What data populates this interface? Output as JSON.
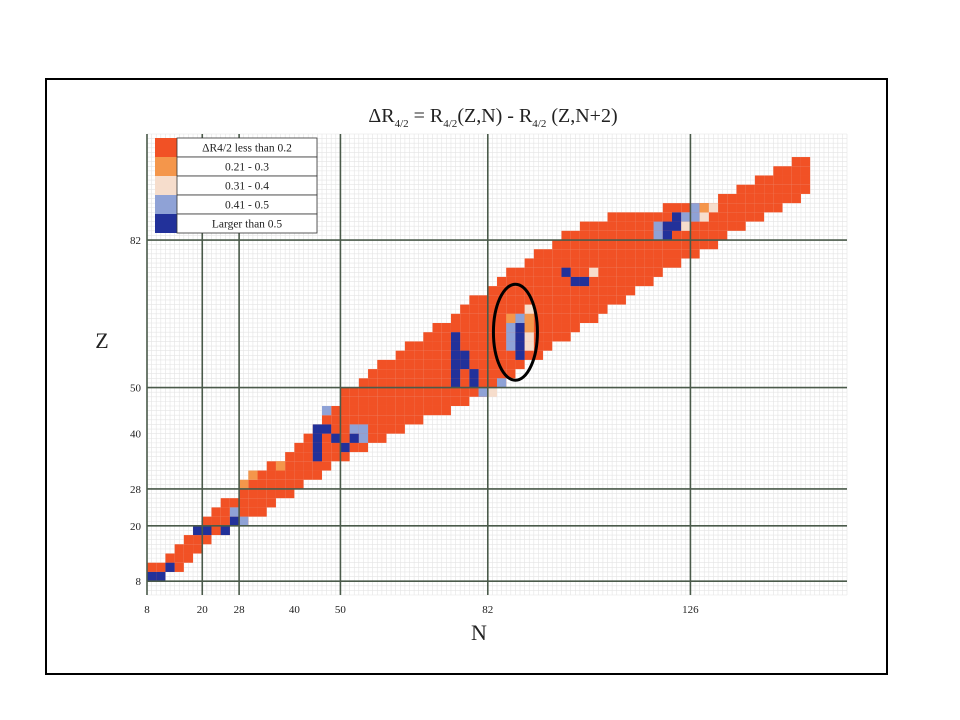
{
  "chart_data": {
    "type": "heatmap",
    "title": "ΔR4/2 = R4/2(Z,N) - R4/2 (Z,N+2)",
    "xlabel": "N",
    "ylabel": "Z",
    "x_ticks": [
      8,
      20,
      28,
      40,
      50,
      82,
      126
    ],
    "y_ticks": [
      8,
      20,
      28,
      40,
      50,
      82
    ],
    "xlim": [
      8,
      160
    ],
    "ylim": [
      5,
      105
    ],
    "magic_numbers_N": [
      8,
      20,
      28,
      50,
      82,
      126
    ],
    "magic_numbers_Z": [
      8,
      20,
      28,
      50,
      82
    ],
    "grid": true,
    "legend_position": "top-left",
    "legend": [
      {
        "label": "ΔR4/2 less than 0.2",
        "color": "#f15125"
      },
      {
        "label": "0.21 - 0.3",
        "color": "#f4964b"
      },
      {
        "label": "0.31 - 0.4",
        "color": "#f6ddcc"
      },
      {
        "label": "0.41 - 0.5",
        "color": "#8fa2d6"
      },
      {
        "label": "Larger than 0.5",
        "color": "#22319a"
      }
    ],
    "annotation": "ellipse around the N≈86–90, Z≈56–68 region",
    "band": {
      "description": "colored cells filling the nuclide band roughly between these Z bounds for each N",
      "N": [
        8,
        12,
        16,
        20,
        24,
        28,
        34,
        40,
        46,
        50,
        56,
        62,
        68,
        74,
        78,
        82,
        86,
        90,
        96,
        102,
        108,
        114,
        120,
        126,
        132,
        138,
        144,
        150
      ],
      "Z_min": [
        7,
        9,
        12,
        16,
        18,
        20,
        24,
        28,
        32,
        34,
        37,
        40,
        43,
        45,
        47,
        49,
        52,
        55,
        59,
        63,
        67,
        71,
        75,
        78,
        82,
        85,
        88,
        92
      ],
      "Z_max": [
        9,
        12,
        15,
        19,
        23,
        26,
        31,
        36,
        42,
        47,
        52,
        56,
        60,
        64,
        67,
        70,
        73,
        76,
        80,
        83,
        85,
        86,
        87,
        88,
        89,
        92,
        96,
        98
      ]
    },
    "highlight_cells": [
      {
        "N": 8,
        "Z": 8,
        "category": 4
      },
      {
        "N": 10,
        "Z": 8,
        "category": 4
      },
      {
        "N": 12,
        "Z": 10,
        "category": 4
      },
      {
        "N": 18,
        "Z": 18,
        "category": 4
      },
      {
        "N": 20,
        "Z": 18,
        "category": 4
      },
      {
        "N": 24,
        "Z": 18,
        "category": 4
      },
      {
        "N": 26,
        "Z": 20,
        "category": 4
      },
      {
        "N": 26,
        "Z": 22,
        "category": 3
      },
      {
        "N": 28,
        "Z": 20,
        "category": 3
      },
      {
        "N": 28,
        "Z": 28,
        "category": 1
      },
      {
        "N": 30,
        "Z": 30,
        "category": 1
      },
      {
        "N": 36,
        "Z": 32,
        "category": 1
      },
      {
        "N": 44,
        "Z": 34,
        "category": 4
      },
      {
        "N": 44,
        "Z": 36,
        "category": 4
      },
      {
        "N": 44,
        "Z": 38,
        "category": 4
      },
      {
        "N": 44,
        "Z": 40,
        "category": 4
      },
      {
        "N": 46,
        "Z": 40,
        "category": 4
      },
      {
        "N": 46,
        "Z": 44,
        "category": 3
      },
      {
        "N": 48,
        "Z": 38,
        "category": 4
      },
      {
        "N": 50,
        "Z": 36,
        "category": 4
      },
      {
        "N": 52,
        "Z": 38,
        "category": 4
      },
      {
        "N": 52,
        "Z": 40,
        "category": 3
      },
      {
        "N": 54,
        "Z": 38,
        "category": 3
      },
      {
        "N": 54,
        "Z": 40,
        "category": 3
      },
      {
        "N": 74,
        "Z": 50,
        "category": 4
      },
      {
        "N": 74,
        "Z": 52,
        "category": 4
      },
      {
        "N": 74,
        "Z": 54,
        "category": 4
      },
      {
        "N": 74,
        "Z": 56,
        "category": 4
      },
      {
        "N": 74,
        "Z": 58,
        "category": 4
      },
      {
        "N": 74,
        "Z": 60,
        "category": 4
      },
      {
        "N": 76,
        "Z": 54,
        "category": 4
      },
      {
        "N": 76,
        "Z": 56,
        "category": 4
      },
      {
        "N": 78,
        "Z": 50,
        "category": 4
      },
      {
        "N": 78,
        "Z": 52,
        "category": 4
      },
      {
        "N": 80,
        "Z": 48,
        "category": 3
      },
      {
        "N": 82,
        "Z": 48,
        "category": 2
      },
      {
        "N": 84,
        "Z": 50,
        "category": 3
      },
      {
        "N": 86,
        "Z": 58,
        "category": 3
      },
      {
        "N": 86,
        "Z": 60,
        "category": 3
      },
      {
        "N": 86,
        "Z": 62,
        "category": 3
      },
      {
        "N": 86,
        "Z": 64,
        "category": 1
      },
      {
        "N": 88,
        "Z": 56,
        "category": 4
      },
      {
        "N": 88,
        "Z": 58,
        "category": 4
      },
      {
        "N": 88,
        "Z": 60,
        "category": 4
      },
      {
        "N": 88,
        "Z": 62,
        "category": 4
      },
      {
        "N": 88,
        "Z": 64,
        "category": 3
      },
      {
        "N": 90,
        "Z": 58,
        "category": 2
      },
      {
        "N": 90,
        "Z": 60,
        "category": 2
      },
      {
        "N": 90,
        "Z": 62,
        "category": 1
      },
      {
        "N": 90,
        "Z": 64,
        "category": 1
      },
      {
        "N": 90,
        "Z": 66,
        "category": 2
      },
      {
        "N": 98,
        "Z": 74,
        "category": 4
      },
      {
        "N": 100,
        "Z": 72,
        "category": 4
      },
      {
        "N": 102,
        "Z": 72,
        "category": 4
      },
      {
        "N": 104,
        "Z": 74,
        "category": 2
      },
      {
        "N": 118,
        "Z": 82,
        "category": 3
      },
      {
        "N": 118,
        "Z": 84,
        "category": 3
      },
      {
        "N": 120,
        "Z": 82,
        "category": 4
      },
      {
        "N": 120,
        "Z": 84,
        "category": 4
      },
      {
        "N": 122,
        "Z": 84,
        "category": 4
      },
      {
        "N": 122,
        "Z": 86,
        "category": 4
      },
      {
        "N": 124,
        "Z": 84,
        "category": 2
      },
      {
        "N": 124,
        "Z": 86,
        "category": 3
      },
      {
        "N": 126,
        "Z": 86,
        "category": 3
      },
      {
        "N": 126,
        "Z": 88,
        "category": 3
      },
      {
        "N": 128,
        "Z": 86,
        "category": 2
      },
      {
        "N": 128,
        "Z": 88,
        "category": 1
      },
      {
        "N": 130,
        "Z": 88,
        "category": 2
      }
    ]
  }
}
